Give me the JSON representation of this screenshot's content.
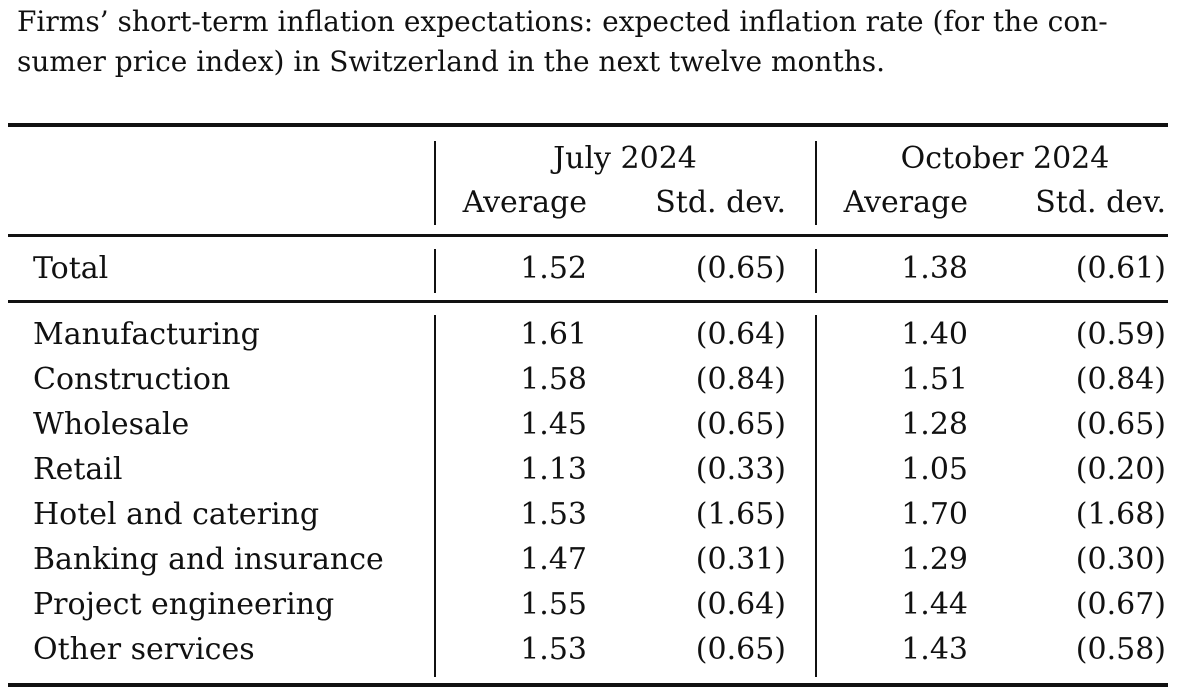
{
  "caption": {
    "line1": "Firms’ short-term inflation expectations: expected inflation rate (for the con-",
    "line2": "sumer price index) in Switzerland in the next twelve months."
  },
  "table": {
    "groups": [
      "July 2024",
      "October 2024"
    ],
    "subheaders": [
      "Average",
      "Std. dev.",
      "Average",
      "Std. dev."
    ],
    "total": {
      "label": "Total",
      "jul_avg": "1.52",
      "jul_sd": "(0.65)",
      "oct_avg": "1.38",
      "oct_sd": "(0.61)"
    },
    "rows": [
      {
        "label": "Manufacturing",
        "jul_avg": "1.61",
        "jul_sd": "(0.64)",
        "oct_avg": "1.40",
        "oct_sd": "(0.59)"
      },
      {
        "label": "Construction",
        "jul_avg": "1.58",
        "jul_sd": "(0.84)",
        "oct_avg": "1.51",
        "oct_sd": "(0.84)"
      },
      {
        "label": "Wholesale",
        "jul_avg": "1.45",
        "jul_sd": "(0.65)",
        "oct_avg": "1.28",
        "oct_sd": "(0.65)"
      },
      {
        "label": "Retail",
        "jul_avg": "1.13",
        "jul_sd": "(0.33)",
        "oct_avg": "1.05",
        "oct_sd": "(0.20)"
      },
      {
        "label": "Hotel and catering",
        "jul_avg": "1.53",
        "jul_sd": "(1.65)",
        "oct_avg": "1.70",
        "oct_sd": "(1.68)"
      },
      {
        "label": "Banking and insurance",
        "jul_avg": "1.47",
        "jul_sd": "(0.31)",
        "oct_avg": "1.29",
        "oct_sd": "(0.30)"
      },
      {
        "label": "Project engineering",
        "jul_avg": "1.55",
        "jul_sd": "(0.64)",
        "oct_avg": "1.44",
        "oct_sd": "(0.67)"
      },
      {
        "label": "Other services",
        "jul_avg": "1.53",
        "jul_sd": "(0.65)",
        "oct_avg": "1.43",
        "oct_sd": "(0.58)"
      }
    ]
  }
}
